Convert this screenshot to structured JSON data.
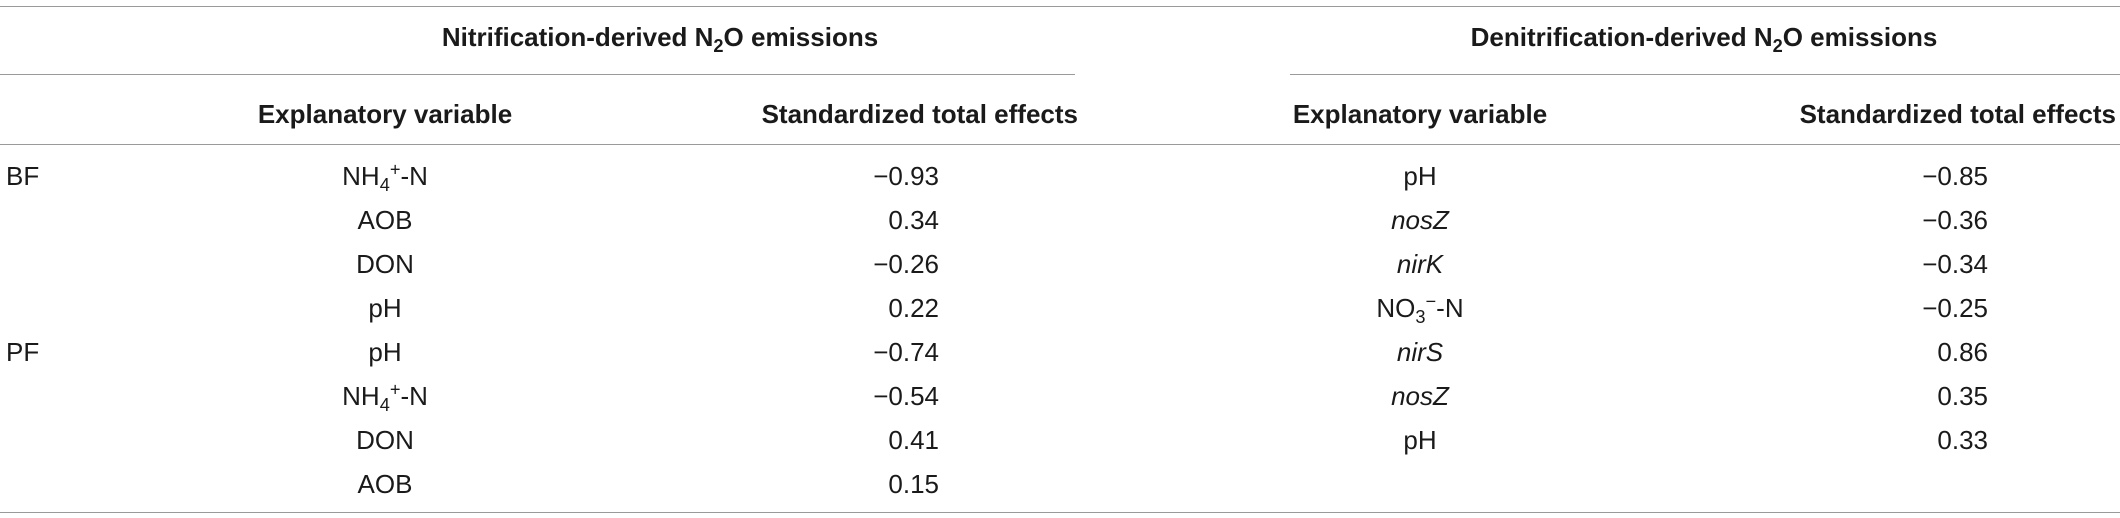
{
  "header": {
    "nitrification_group": {
      "prefix": "Nitrification-derived N",
      "sub": "2",
      "suffix": "O emissions"
    },
    "denitrification_group": {
      "prefix": "Denitrification-derived N",
      "sub": "2",
      "suffix": "O emissions"
    },
    "col_explanatory_left": "Explanatory variable",
    "col_effects_left": "Standardized total effects",
    "col_explanatory_right": "Explanatory variable",
    "col_effects_right": "Standardized total effects"
  },
  "row_groups": {
    "bf": "BF",
    "pf": "PF"
  },
  "rows": [
    {
      "nit_var": {
        "base": "NH",
        "sub": "4",
        "sup": "+",
        "tail": "-N"
      },
      "nit_effect": "−0.93",
      "den_var": {
        "text": "pH",
        "italic": false
      },
      "den_effect": "−0.85"
    },
    {
      "nit_var": {
        "text": "AOB"
      },
      "nit_effect": "0.34",
      "den_var": {
        "text": "nosZ",
        "italic": true
      },
      "den_effect": "−0.36"
    },
    {
      "nit_var": {
        "text": "DON"
      },
      "nit_effect": "−0.26",
      "den_var": {
        "text": "nirK",
        "italic": true
      },
      "den_effect": "−0.34"
    },
    {
      "nit_var": {
        "text": "pH"
      },
      "nit_effect": "0.22",
      "den_var": {
        "base": "NO",
        "sub": "3",
        "sup": "−",
        "tail": "-N"
      },
      "den_effect": "−0.25"
    },
    {
      "nit_var": {
        "text": "pH"
      },
      "nit_effect": "−0.74",
      "den_var": {
        "text": "nirS",
        "italic": true
      },
      "den_effect": "0.86"
    },
    {
      "nit_var": {
        "base": "NH",
        "sub": "4",
        "sup": "+",
        "tail": "-N"
      },
      "nit_effect": "−0.54",
      "den_var": {
        "text": "nosZ",
        "italic": true
      },
      "den_effect": "0.35"
    },
    {
      "nit_var": {
        "text": "DON"
      },
      "nit_effect": "0.41",
      "den_var": {
        "text": "pH",
        "italic": false
      },
      "den_effect": "0.33"
    },
    {
      "nit_var": {
        "text": "AOB"
      },
      "nit_effect": "0.15",
      "den_var": null,
      "den_effect": ""
    }
  ]
}
